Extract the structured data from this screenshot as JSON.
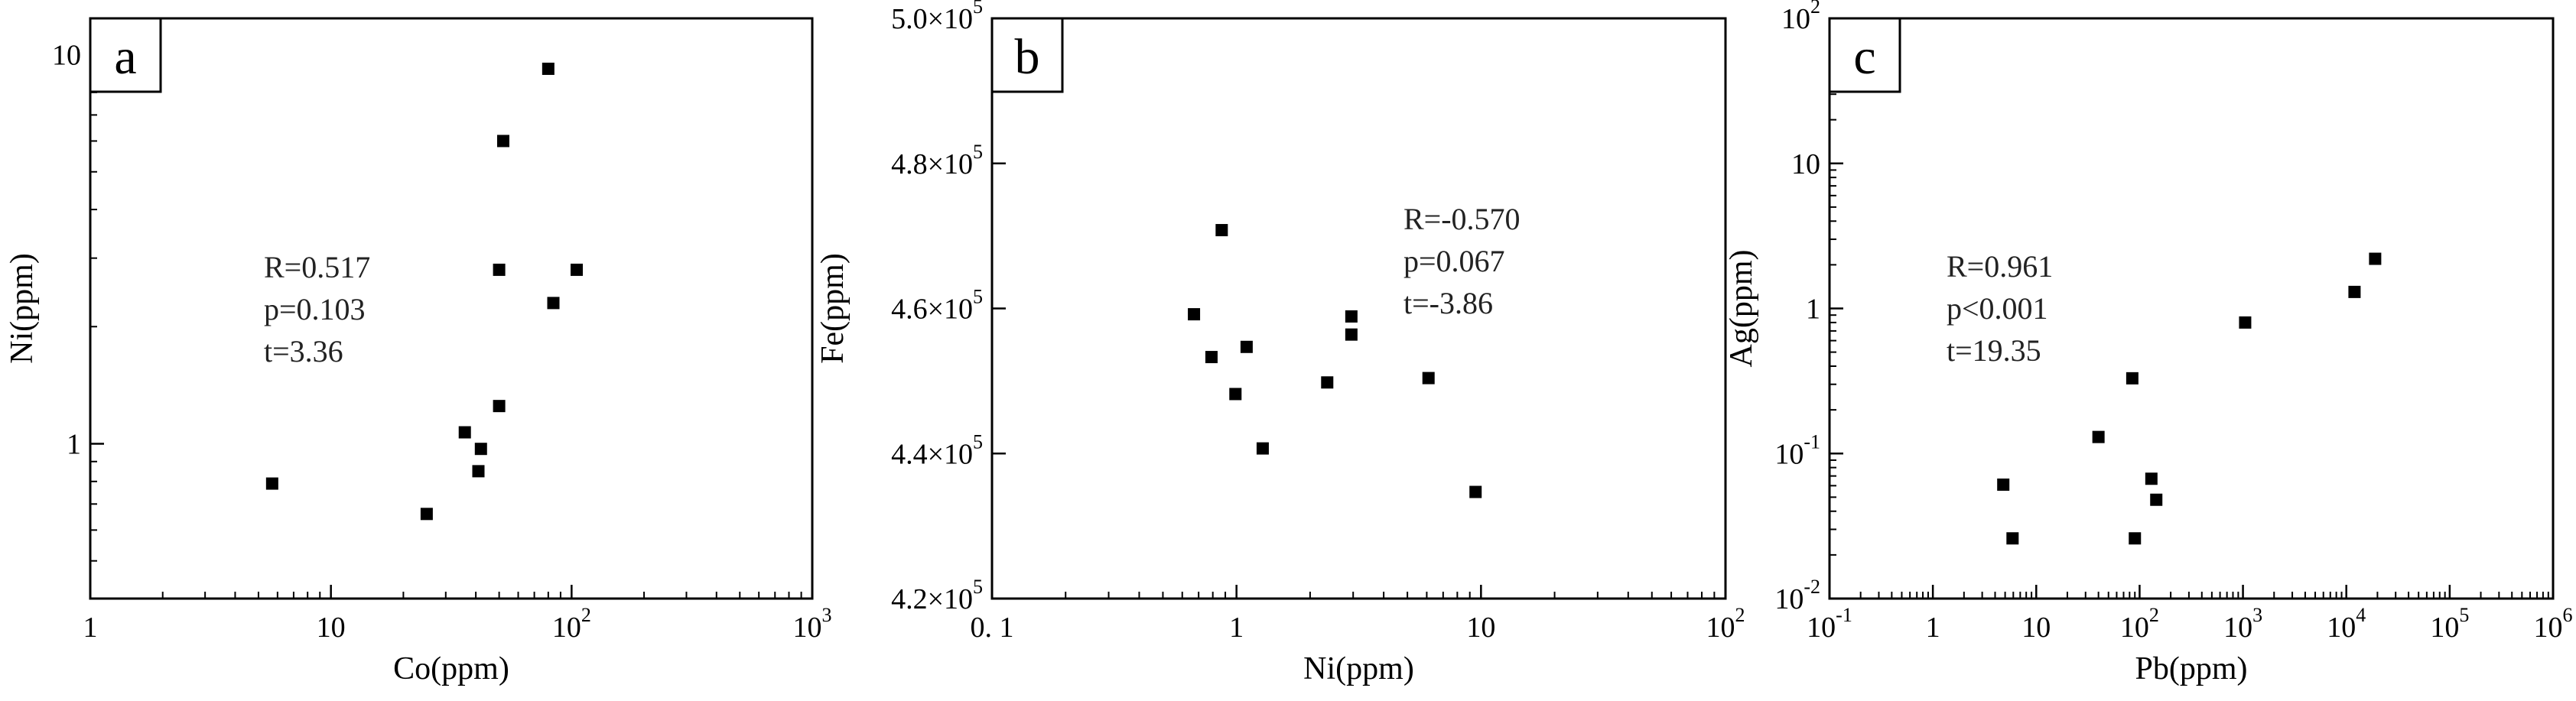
{
  "chart_data": [
    {
      "type": "scatter",
      "panel_label": "a",
      "xlabel": "Co(ppm)",
      "ylabel": "Ni(ppm)",
      "x_scale": "log",
      "y_scale": "log",
      "xlim": [
        1,
        1000
      ],
      "ylim": [
        0.4,
        12.4
      ],
      "x_ticks": [
        {
          "value": 1,
          "mant": "1",
          "exp": ""
        },
        {
          "value": 10,
          "mant": "10",
          "exp": ""
        },
        {
          "value": 100,
          "mant": "10",
          "exp": "2"
        },
        {
          "value": 1000,
          "mant": "10",
          "exp": "3"
        }
      ],
      "y_ticks": [
        {
          "value": 1,
          "mant": "1",
          "exp": ""
        },
        {
          "value": 10,
          "mant": "10",
          "exp": ""
        }
      ],
      "stats": [
        "R=0.517",
        "p=0.103",
        "t=3.36"
      ],
      "stats_pos": "left-middle",
      "points": [
        {
          "x": 5.7,
          "y": 0.79
        },
        {
          "x": 25,
          "y": 0.66
        },
        {
          "x": 36,
          "y": 1.07
        },
        {
          "x": 42,
          "y": 0.97
        },
        {
          "x": 41,
          "y": 0.85
        },
        {
          "x": 50,
          "y": 1.25
        },
        {
          "x": 50,
          "y": 2.8
        },
        {
          "x": 52,
          "y": 6.0
        },
        {
          "x": 80,
          "y": 9.2
        },
        {
          "x": 84,
          "y": 2.3
        },
        {
          "x": 105,
          "y": 2.8
        }
      ]
    },
    {
      "type": "scatter",
      "panel_label": "b",
      "xlabel": "Ni(ppm)",
      "ylabel": "Fe(ppm)",
      "x_scale": "log",
      "y_scale": "linear",
      "xlim": [
        0.1,
        100
      ],
      "ylim": [
        420000,
        500000
      ],
      "x_ticks": [
        {
          "value": 0.1,
          "mant": "0. 1",
          "exp": ""
        },
        {
          "value": 1,
          "mant": "1",
          "exp": ""
        },
        {
          "value": 10,
          "mant": "10",
          "exp": ""
        },
        {
          "value": 100,
          "mant": "10",
          "exp": "2"
        }
      ],
      "y_ticks": [
        {
          "value": 420000,
          "mant": "4.2×10",
          "exp": "5"
        },
        {
          "value": 440000,
          "mant": "4.4×10",
          "exp": "5"
        },
        {
          "value": 460000,
          "mant": "4.6×10",
          "exp": "5"
        },
        {
          "value": 480000,
          "mant": "4.8×10",
          "exp": "5"
        },
        {
          "value": 500000,
          "mant": "5.0×10",
          "exp": "5"
        }
      ],
      "stats": [
        "R=-0.570",
        "p=0.067",
        "t=-3.86"
      ],
      "stats_pos": "right-upper",
      "points": [
        {
          "x": 0.67,
          "y": 459200
        },
        {
          "x": 0.79,
          "y": 453300
        },
        {
          "x": 0.87,
          "y": 470800
        },
        {
          "x": 0.99,
          "y": 448200
        },
        {
          "x": 1.1,
          "y": 454700
        },
        {
          "x": 1.28,
          "y": 440700
        },
        {
          "x": 2.35,
          "y": 449800
        },
        {
          "x": 2.95,
          "y": 458900
        },
        {
          "x": 2.95,
          "y": 456400
        },
        {
          "x": 6.1,
          "y": 450400
        },
        {
          "x": 9.5,
          "y": 434700
        }
      ]
    },
    {
      "type": "scatter",
      "panel_label": "c",
      "xlabel": "Pb(ppm)",
      "ylabel": "Ag(ppm)",
      "x_scale": "log",
      "y_scale": "log",
      "xlim": [
        0.1,
        1000000
      ],
      "ylim": [
        0.01,
        100
      ],
      "x_ticks": [
        {
          "value": 0.1,
          "mant": "10",
          "exp": "-1"
        },
        {
          "value": 1,
          "mant": "1",
          "exp": ""
        },
        {
          "value": 10,
          "mant": "10",
          "exp": ""
        },
        {
          "value": 100,
          "mant": "10",
          "exp": "2"
        },
        {
          "value": 1000,
          "mant": "10",
          "exp": "3"
        },
        {
          "value": 10000,
          "mant": "10",
          "exp": "4"
        },
        {
          "value": 100000,
          "mant": "10",
          "exp": "5"
        },
        {
          "value": 1000000,
          "mant": "10",
          "exp": "6"
        }
      ],
      "y_ticks": [
        {
          "value": 0.01,
          "mant": "10",
          "exp": "-2"
        },
        {
          "value": 0.1,
          "mant": "10",
          "exp": "-1"
        },
        {
          "value": 1,
          "mant": "1",
          "exp": ""
        },
        {
          "value": 10,
          "mant": "10",
          "exp": ""
        },
        {
          "value": 100,
          "mant": "10",
          "exp": "2"
        }
      ],
      "stats": [
        "R=0.961",
        "p<0.001",
        "t=19.35"
      ],
      "stats_pos": "left-middle",
      "points": [
        {
          "x": 4.8,
          "y": 0.061
        },
        {
          "x": 5.9,
          "y": 0.026
        },
        {
          "x": 40,
          "y": 0.13
        },
        {
          "x": 85,
          "y": 0.33
        },
        {
          "x": 90,
          "y": 0.026
        },
        {
          "x": 130,
          "y": 0.067
        },
        {
          "x": 145,
          "y": 0.048
        },
        {
          "x": 1050,
          "y": 0.8
        },
        {
          "x": 12000,
          "y": 1.3
        },
        {
          "x": 19000,
          "y": 2.2
        }
      ]
    }
  ]
}
